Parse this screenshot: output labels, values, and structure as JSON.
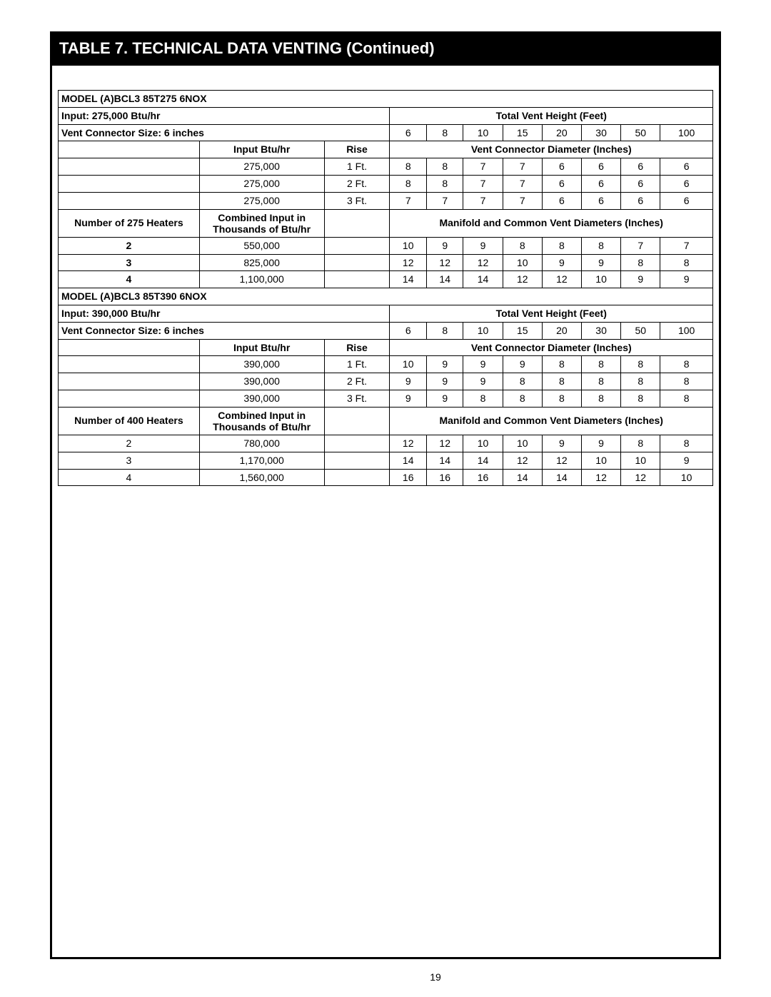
{
  "title": "TABLE 7. TECHNICAL DATA VENTING (Continued)",
  "page_number": "19",
  "colors": {
    "frame": "#000000",
    "bg": "#ffffff",
    "text": "#000000",
    "title_bg": "#000000",
    "title_fg": "#ffffff"
  },
  "sections": [
    {
      "model": "MODEL (A)BCL3 85T275 6NOX",
      "input_label": "Input: 275,000 Btu/hr",
      "vent_height_label": "Total Vent Height (Feet)",
      "conn_size_label": "Vent Connector Size: 6 inches",
      "heights": [
        "6",
        "8",
        "10",
        "15",
        "20",
        "30",
        "50",
        "100"
      ],
      "input_btu_label": "Input Btu/hr",
      "rise_label": "Rise",
      "conn_diam_label": "Vent Connector Diameter (Inches)",
      "rows_conn": [
        {
          "btu": "275,000",
          "rise": "1 Ft.",
          "v": [
            "8",
            "8",
            "7",
            "7",
            "6",
            "6",
            "6",
            "6"
          ]
        },
        {
          "btu": "275,000",
          "rise": "2 Ft.",
          "v": [
            "8",
            "8",
            "7",
            "7",
            "6",
            "6",
            "6",
            "6"
          ]
        },
        {
          "btu": "275,000",
          "rise": "3 Ft.",
          "v": [
            "7",
            "7",
            "7",
            "7",
            "6",
            "6",
            "6",
            "6"
          ]
        }
      ],
      "num_heaters_label": "Number of 275 Heaters",
      "combined_label_1": "Combined Input in",
      "combined_label_2": "Thousands of Btu/hr",
      "manifold_label": "Manifold and Common Vent Diameters (Inches)",
      "rows_manifold": [
        {
          "n": "2",
          "btu": "550,000",
          "v": [
            "10",
            "9",
            "9",
            "8",
            "8",
            "8",
            "7",
            "7"
          ]
        },
        {
          "n": "3",
          "btu": "825,000",
          "v": [
            "12",
            "12",
            "12",
            "10",
            "9",
            "9",
            "8",
            "8"
          ]
        },
        {
          "n": "4",
          "btu": "1,100,000",
          "v": [
            "14",
            "14",
            "14",
            "12",
            "12",
            "10",
            "9",
            "9"
          ]
        }
      ],
      "bold_manifold_n": true
    },
    {
      "model": "MODEL (A)BCL3 85T390 6NOX",
      "input_label": "Input: 390,000 Btu/hr",
      "vent_height_label": "Total Vent Height (Feet)",
      "conn_size_label": "Vent Connector Size: 6 inches",
      "heights": [
        "6",
        "8",
        "10",
        "15",
        "20",
        "30",
        "50",
        "100"
      ],
      "input_btu_label": "Input Btu/hr",
      "rise_label": "Rise",
      "conn_diam_label": "Vent Connector Diameter (Inches)",
      "rows_conn": [
        {
          "btu": "390,000",
          "rise": "1 Ft.",
          "v": [
            "10",
            "9",
            "9",
            "9",
            "8",
            "8",
            "8",
            "8"
          ]
        },
        {
          "btu": "390,000",
          "rise": "2 Ft.",
          "v": [
            "9",
            "9",
            "9",
            "8",
            "8",
            "8",
            "8",
            "8"
          ]
        },
        {
          "btu": "390,000",
          "rise": "3 Ft.",
          "v": [
            "9",
            "9",
            "8",
            "8",
            "8",
            "8",
            "8",
            "8"
          ]
        }
      ],
      "num_heaters_label": "Number of 400 Heaters",
      "combined_label_1": "Combined Input in",
      "combined_label_2": "Thousands of Btu/hr",
      "manifold_label": "Manifold and Common Vent Diameters (Inches)",
      "rows_manifold": [
        {
          "n": "2",
          "btu": "780,000",
          "v": [
            "12",
            "12",
            "10",
            "10",
            "9",
            "9",
            "8",
            "8"
          ]
        },
        {
          "n": "3",
          "btu": "1,170,000",
          "v": [
            "14",
            "14",
            "14",
            "12",
            "12",
            "10",
            "10",
            "9"
          ]
        },
        {
          "n": "4",
          "btu": "1,560,000",
          "v": [
            "16",
            "16",
            "16",
            "14",
            "14",
            "12",
            "12",
            "10"
          ]
        }
      ],
      "bold_manifold_n": false
    }
  ]
}
